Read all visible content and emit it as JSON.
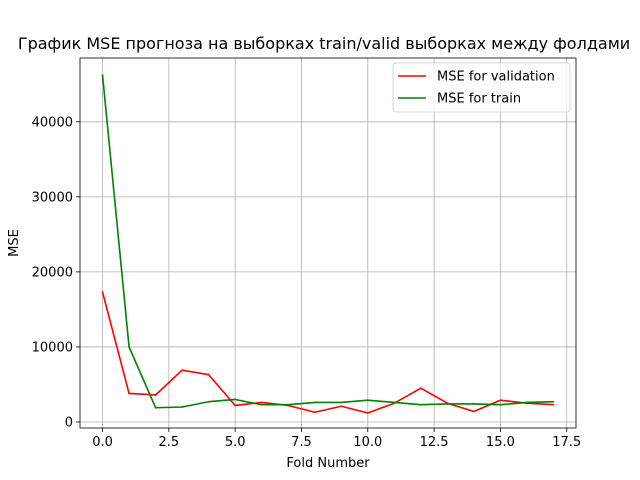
{
  "chart_data": {
    "type": "line",
    "title": "График MSE прогноза на выборках train/valid выборках между фолдами",
    "xlabel": "Fold Number",
    "ylabel": "MSE",
    "xlim": [
      -0.85,
      17.85
    ],
    "ylim": [
      -800,
      48500
    ],
    "xticks": [
      0.0,
      2.5,
      5.0,
      7.5,
      10.0,
      12.5,
      15.0,
      17.5
    ],
    "xtick_labels": [
      "0.0",
      "2.5",
      "5.0",
      "7.5",
      "10.0",
      "12.5",
      "15.0",
      "17.5"
    ],
    "yticks": [
      0,
      10000,
      20000,
      30000,
      40000
    ],
    "ytick_labels": [
      "0",
      "10000",
      "20000",
      "30000",
      "40000"
    ],
    "grid": true,
    "legend_position": "top-right",
    "x": [
      0,
      1,
      2,
      3,
      4,
      5,
      6,
      7,
      8,
      9,
      10,
      11,
      12,
      13,
      14,
      15,
      16,
      17
    ],
    "series": [
      {
        "name": "MSE for validation",
        "color": "#ff0000",
        "values": [
          17300,
          3800,
          3600,
          6900,
          6300,
          2200,
          2600,
          2200,
          1300,
          2100,
          1200,
          2500,
          4500,
          2500,
          1400,
          2900,
          2500,
          2300
        ]
      },
      {
        "name": "MSE for train",
        "color": "#008000",
        "values": [
          46200,
          10000,
          1900,
          2000,
          2700,
          3000,
          2300,
          2300,
          2600,
          2600,
          2900,
          2600,
          2300,
          2400,
          2400,
          2300,
          2600,
          2700
        ]
      }
    ]
  }
}
